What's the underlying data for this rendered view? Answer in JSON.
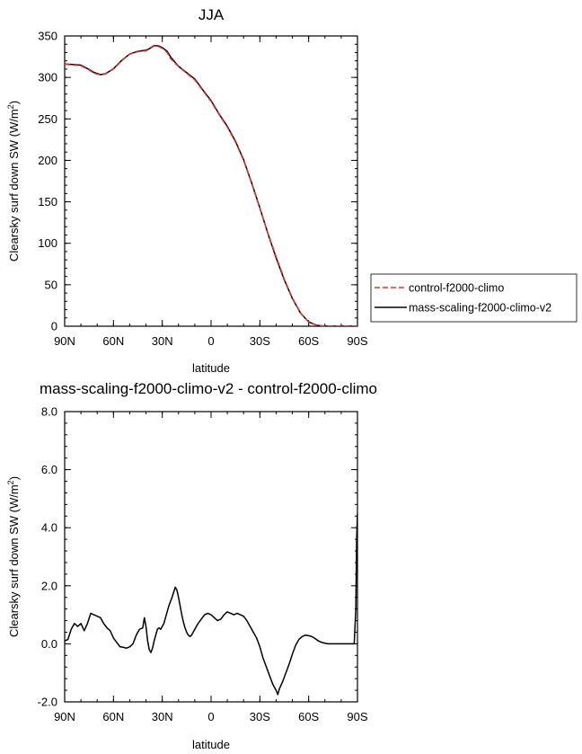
{
  "chart_data": [
    {
      "type": "line",
      "title": "JJA",
      "xlabel": "latitude",
      "ylabel": "Clearsky surf down SW (W/m",
      "ylabel_sup": "2",
      "ylabel_close": ")",
      "xlim": [
        90,
        -90
      ],
      "ylim": [
        0,
        350
      ],
      "xticks": [
        {
          "value": 90,
          "label": "90N"
        },
        {
          "value": 60,
          "label": "60N"
        },
        {
          "value": 30,
          "label": "30N"
        },
        {
          "value": 0,
          "label": "0"
        },
        {
          "value": -30,
          "label": "30S"
        },
        {
          "value": -60,
          "label": "60S"
        },
        {
          "value": -90,
          "label": "90S"
        }
      ],
      "yticks": [
        {
          "value": 0,
          "label": "0"
        },
        {
          "value": 50,
          "label": "50"
        },
        {
          "value": 100,
          "label": "100"
        },
        {
          "value": 150,
          "label": "150"
        },
        {
          "value": 200,
          "label": "200"
        },
        {
          "value": 250,
          "label": "250"
        },
        {
          "value": 300,
          "label": "300"
        },
        {
          "value": 350,
          "label": "350"
        }
      ],
      "grid": false,
      "legend": {
        "position": "right"
      },
      "series": [
        {
          "name": "control-f2000-climo",
          "color": "#e8302a",
          "dash": "dashed",
          "x": [
            90,
            85,
            80,
            75,
            72,
            68,
            65,
            60,
            55,
            50,
            45,
            40,
            38,
            35,
            32,
            30,
            27,
            25,
            20,
            15,
            10,
            5,
            0,
            -5,
            -10,
            -15,
            -20,
            -25,
            -30,
            -35,
            -40,
            -45,
            -50,
            -55,
            -60,
            -65,
            -70,
            -75,
            -80,
            -85,
            -90
          ],
          "y": [
            316,
            315,
            314,
            309,
            305,
            303,
            304,
            310,
            320,
            328,
            331,
            332,
            334,
            338,
            337,
            335,
            330,
            323,
            313,
            305,
            297,
            284,
            271,
            255,
            240,
            222,
            200,
            172,
            142,
            112,
            84,
            57,
            34,
            16,
            5,
            1,
            0,
            0,
            0,
            0,
            0
          ]
        },
        {
          "name": "mass-scaling-f2000-climo-v2",
          "color": "#000000",
          "dash": "solid",
          "x": [
            90,
            85,
            80,
            75,
            72,
            68,
            65,
            60,
            55,
            50,
            45,
            40,
            38,
            35,
            32,
            30,
            27,
            25,
            20,
            15,
            10,
            5,
            0,
            -5,
            -10,
            -15,
            -20,
            -25,
            -30,
            -35,
            -40,
            -45,
            -50,
            -55,
            -60,
            -65,
            -70,
            -75,
            -80,
            -85,
            -90
          ],
          "y": [
            316.2,
            315.6,
            314.8,
            309.6,
            306,
            303.4,
            304.3,
            310.5,
            320.4,
            328.3,
            331.5,
            332.8,
            334.5,
            338.5,
            337.8,
            336,
            331.5,
            325,
            313.3,
            305.7,
            298,
            284.8,
            272,
            255.7,
            241,
            223,
            200.8,
            172.6,
            142.7,
            111.4,
            82.3,
            56,
            33.4,
            15.8,
            5.2,
            1.1,
            0.1,
            0,
            0,
            0,
            0
          ]
        }
      ]
    },
    {
      "type": "line",
      "title": "mass-scaling-f2000-climo-v2 - control-f2000-climo",
      "xlabel": "latitude",
      "ylabel": "Clearsky surf down SW (W/m",
      "ylabel_sup": "2",
      "ylabel_close": ")",
      "xlim": [
        90,
        -90
      ],
      "ylim": [
        -2,
        8
      ],
      "xticks": [
        {
          "value": 90,
          "label": "90N"
        },
        {
          "value": 60,
          "label": "60N"
        },
        {
          "value": 30,
          "label": "30N"
        },
        {
          "value": 0,
          "label": "0"
        },
        {
          "value": -30,
          "label": "30S"
        },
        {
          "value": -60,
          "label": "60S"
        },
        {
          "value": -90,
          "label": "90S"
        }
      ],
      "yticks": [
        {
          "value": -2,
          "label": "-2.0"
        },
        {
          "value": 0,
          "label": "0.0"
        },
        {
          "value": 2,
          "label": "2.0"
        },
        {
          "value": 4,
          "label": "4.0"
        },
        {
          "value": 6,
          "label": "6.0"
        },
        {
          "value": 8,
          "label": "8.0"
        }
      ],
      "grid": false,
      "series": [
        {
          "color": "#000000",
          "dash": "solid",
          "x": [
            90,
            88,
            86,
            84,
            82,
            80,
            78,
            76,
            74,
            72,
            70,
            68,
            66,
            64,
            62,
            60,
            58,
            56,
            54,
            52,
            50,
            48,
            46,
            44,
            42,
            41,
            40,
            39,
            38,
            37,
            36,
            35,
            34,
            33,
            32,
            31,
            30,
            29,
            28,
            26,
            24,
            22,
            21,
            20,
            19,
            18,
            17,
            16,
            15,
            14,
            13,
            12,
            11,
            10,
            8,
            6,
            4,
            2,
            0,
            -2,
            -4,
            -6,
            -8,
            -10,
            -12,
            -14,
            -16,
            -18,
            -20,
            -22,
            -24,
            -26,
            -28,
            -30,
            -32,
            -34,
            -36,
            -38,
            -40,
            -41,
            -42,
            -44,
            -46,
            -48,
            -50,
            -52,
            -54,
            -56,
            -58,
            -60,
            -62,
            -64,
            -66,
            -68,
            -70,
            -72,
            -74,
            -76,
            -78,
            -80,
            -82,
            -84,
            -86,
            -88,
            -89,
            -89.5,
            -90
          ],
          "y": [
            0.1,
            0.15,
            0.5,
            0.7,
            0.6,
            0.7,
            0.45,
            0.7,
            1.05,
            1.0,
            0.95,
            0.9,
            0.7,
            0.55,
            0.45,
            0.2,
            0.05,
            -0.1,
            -0.12,
            -0.15,
            -0.1,
            0.0,
            0.3,
            0.5,
            0.55,
            0.9,
            0.6,
            0.1,
            -0.2,
            -0.3,
            -0.15,
            0.1,
            0.3,
            0.5,
            0.55,
            0.5,
            0.6,
            0.7,
            0.9,
            1.3,
            1.6,
            1.95,
            1.85,
            1.6,
            1.3,
            1.0,
            0.75,
            0.55,
            0.4,
            0.3,
            0.25,
            0.3,
            0.4,
            0.5,
            0.7,
            0.85,
            1.0,
            1.05,
            1.0,
            0.9,
            0.8,
            0.85,
            1.0,
            1.1,
            1.05,
            1.0,
            1.05,
            1.0,
            0.95,
            0.8,
            0.6,
            0.4,
            0.2,
            -0.1,
            -0.5,
            -0.8,
            -1.1,
            -1.4,
            -1.6,
            -1.75,
            -1.55,
            -1.3,
            -1.0,
            -0.7,
            -0.35,
            -0.05,
            0.15,
            0.25,
            0.3,
            0.28,
            0.25,
            0.18,
            0.1,
            0.05,
            0.02,
            0.0,
            0.0,
            0.0,
            0.0,
            0.0,
            0.0,
            0.0,
            0.0,
            0.0,
            1.2,
            3.6,
            4.5
          ]
        }
      ]
    }
  ]
}
